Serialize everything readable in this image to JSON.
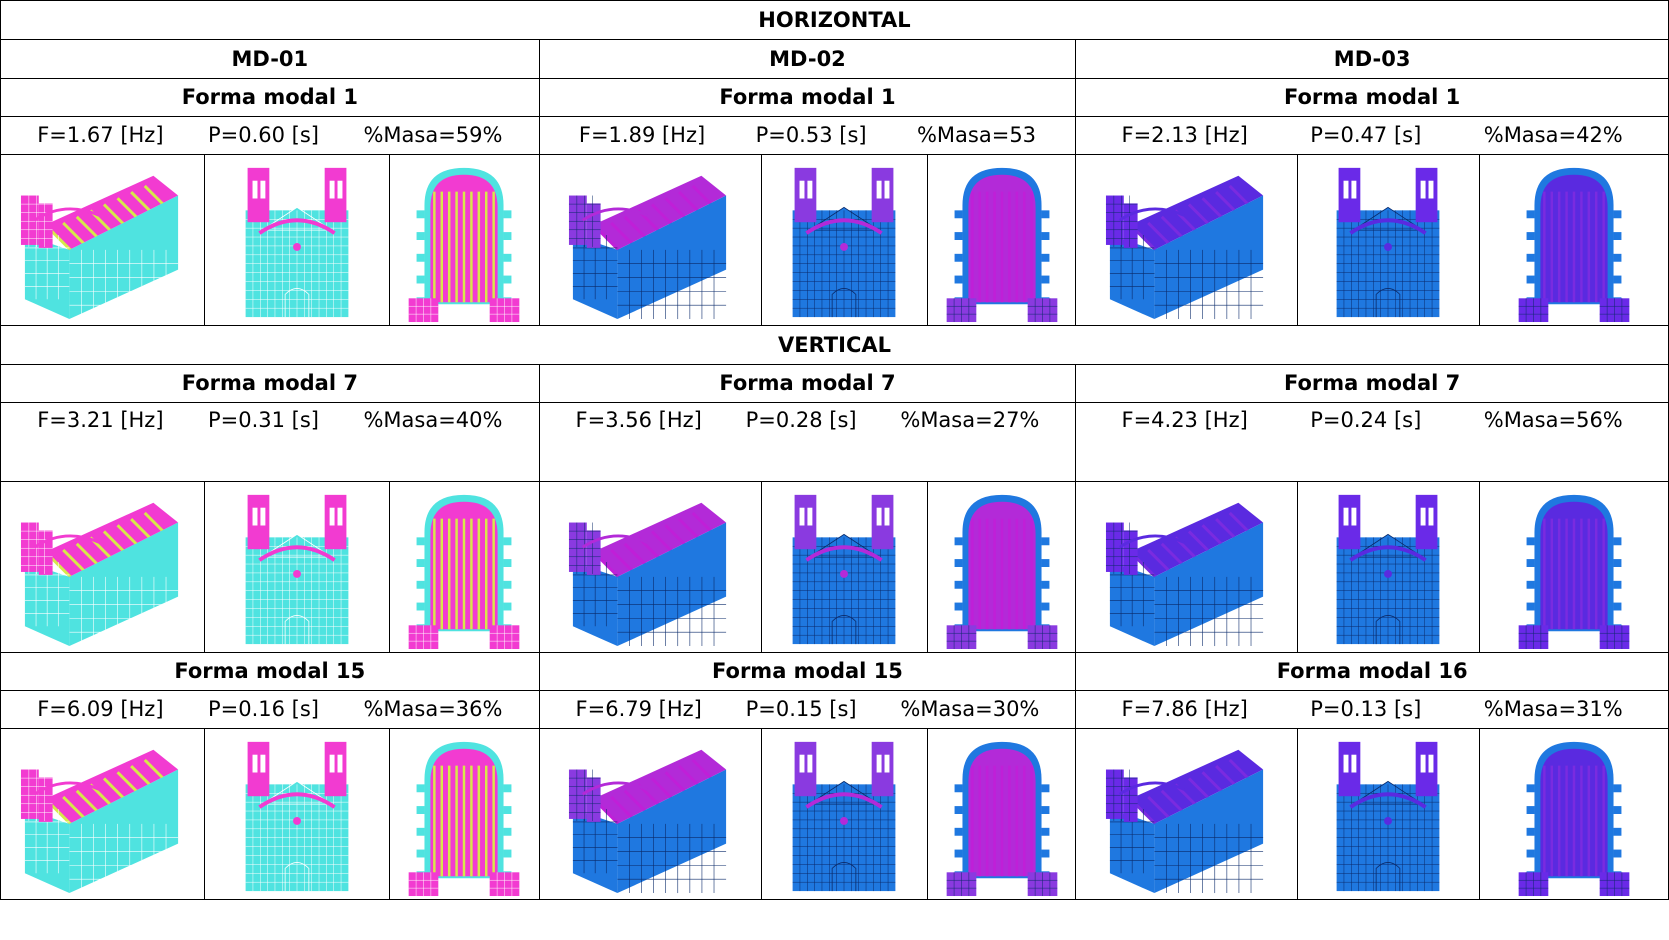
{
  "sections": [
    {
      "title": "HORIZONTAL",
      "models": [
        "MD-01",
        "MD-02",
        "MD-03"
      ],
      "row_groups": [
        {
          "modes": [
            "Forma modal 1",
            "Forma modal 1",
            "Forma modal 1"
          ],
          "values": [
            {
              "f": "F=1.67 [Hz]",
              "p": "P=0.60 [s]",
              "m": "%Masa=59%"
            },
            {
              "f": "F=1.89 [Hz]",
              "p": "P=0.53 [s]",
              "m": "%Masa=53"
            },
            {
              "f": "F=2.13 [Hz]",
              "p": "P=0.47 [s]",
              "m": "%Masa=42%"
            }
          ]
        }
      ]
    },
    {
      "title": "VERTICAL",
      "row_groups": [
        {
          "modes": [
            "Forma modal 7",
            "Forma modal 7",
            "Forma modal 7"
          ],
          "values": [
            {
              "f": "F=3.21 [Hz]",
              "p": "P=0.31 [s]",
              "m": "%Masa=40%"
            },
            {
              "f": "F=3.56 [Hz]",
              "p": "P=0.28 [s]",
              "m": "%Masa=27%"
            },
            {
              "f": "F=4.23 [Hz]",
              "p": "P=0.24 [s]",
              "m": "%Masa=56%"
            }
          ]
        },
        {
          "modes": [
            "Forma modal 15",
            "Forma modal 15",
            "Forma modal 16"
          ],
          "values": [
            {
              "f": "F=6.09 [Hz]",
              "p": "P=0.16 [s]",
              "m": "%Masa=36%"
            },
            {
              "f": "F=6.79 [Hz]",
              "p": "P=0.15 [s]",
              "m": "%Masa=30%"
            },
            {
              "f": "F=7.86 [Hz]",
              "p": "P=0.13 [s]",
              "m": "%Masa=31%"
            }
          ]
        }
      ]
    }
  ],
  "palettes": {
    "md01": {
      "body": "#4fe3e0",
      "roof": "#f23bd1",
      "stripe": "#d7e84a",
      "line": "#ffffff",
      "tower": "#f23bd1"
    },
    "md02": {
      "body": "#1f78e0",
      "roof": "#b32ad8",
      "stripe": "#c01fd8",
      "line": "#0a2a6a",
      "tower": "#8a3ae0"
    },
    "md03": {
      "body": "#1f78e0",
      "roof": "#5a2ae0",
      "stripe": "#7a2be0",
      "line": "#0a2a6a",
      "tower": "#6a2ae8"
    }
  },
  "image_views": [
    "iso-view-icon",
    "front-view-icon",
    "plan-view-icon"
  ]
}
